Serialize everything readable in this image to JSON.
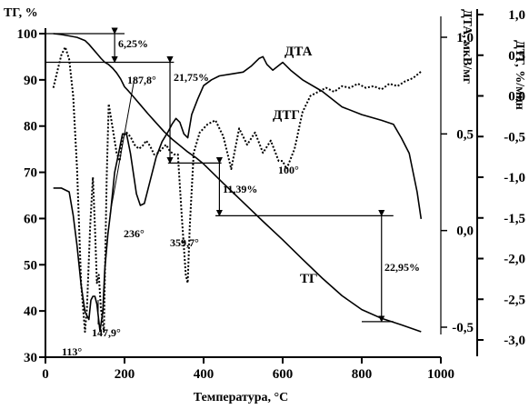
{
  "chart_data": {
    "type": "line",
    "title": "",
    "xlabel": "Температура, °С",
    "ylabels": {
      "tg": "ТГ, %",
      "dta": "ДТА, мкВ/мг",
      "dtg": "ДТГ, %/мин"
    },
    "xlim": [
      0,
      1000
    ],
    "ylims": {
      "tg": [
        30,
        100
      ],
      "dta": [
        -0.5,
        1.0
      ],
      "dtg": [
        -3.0,
        1.0
      ]
    },
    "grid": false,
    "legend": "none",
    "axes": {
      "x_ticks": [
        "0",
        "200",
        "400",
        "600",
        "800",
        "1000"
      ],
      "tg_ticks": [
        "30",
        "40",
        "50",
        "60",
        "70",
        "80",
        "90",
        "100"
      ],
      "dta_ticks": [
        "-0,5",
        "0,0",
        "0,5",
        "1,0"
      ],
      "dtg_ticks": [
        "-3,0",
        "-2,5",
        "-2,0",
        "-1,5",
        "-1,0",
        "-0,5",
        "0,0",
        "0,5",
        "1,0"
      ]
    },
    "curve_labels": {
      "tg": "ТГ",
      "dta": "ДТА",
      "dtg": "ДТГ"
    },
    "series": [
      {
        "name": "ТГ",
        "axis": "tg",
        "style": "solid",
        "x": [
          20,
          40,
          60,
          80,
          100,
          110,
          120,
          130,
          140,
          150,
          160,
          170,
          180,
          190,
          200,
          210,
          220,
          240,
          260,
          280,
          300,
          320,
          340,
          360,
          380,
          400,
          450,
          500,
          550,
          600,
          650,
          700,
          750,
          800,
          850,
          900,
          950
        ],
        "y": [
          100,
          99.8,
          99.5,
          99.2,
          98.5,
          97.7,
          96.7,
          95.7,
          94.7,
          93.8,
          93.3,
          92.5,
          91.5,
          90.2,
          88.5,
          87.6,
          86.6,
          84.6,
          82.6,
          80.7,
          78.8,
          77.2,
          75.8,
          74.4,
          73.2,
          71.8,
          67.6,
          63.5,
          59.4,
          55.4,
          51.2,
          47.1,
          43.3,
          40.3,
          38.4,
          37,
          35.5
        ]
      },
      {
        "name": "ДТА",
        "axis": "dta",
        "style": "solid",
        "x": [
          20,
          40,
          60,
          70,
          80,
          90,
          100,
          110,
          115,
          120,
          125,
          130,
          138,
          145,
          150,
          158,
          165,
          175,
          185,
          195,
          205,
          215,
          230,
          240,
          250,
          265,
          280,
          295,
          310,
          320,
          330,
          340,
          350,
          360,
          370,
          385,
          400,
          420,
          440,
          470,
          500,
          520,
          540,
          550,
          560,
          575,
          600,
          620,
          650,
          700,
          750,
          800,
          850,
          880,
          900,
          920,
          940,
          950
        ],
        "y": [
          0.22,
          0.22,
          0.2,
          0.08,
          -0.08,
          -0.28,
          -0.42,
          -0.46,
          -0.36,
          -0.34,
          -0.34,
          -0.38,
          -0.52,
          -0.42,
          -0.2,
          -0.02,
          0.1,
          0.3,
          0.4,
          0.5,
          0.5,
          0.4,
          0.19,
          0.13,
          0.14,
          0.26,
          0.38,
          0.46,
          0.51,
          0.55,
          0.58,
          0.56,
          0.5,
          0.48,
          0.6,
          0.68,
          0.75,
          0.78,
          0.8,
          0.81,
          0.82,
          0.85,
          0.89,
          0.9,
          0.86,
          0.83,
          0.87,
          0.83,
          0.78,
          0.72,
          0.64,
          0.6,
          0.57,
          0.55,
          0.48,
          0.4,
          0.2,
          0.06
        ]
      },
      {
        "name": "ДТГ",
        "axis": "dtg",
        "style": "dotted",
        "x": [
          20,
          30,
          40,
          50,
          60,
          70,
          80,
          90,
          100,
          105,
          113,
          120,
          125,
          130,
          135,
          140,
          147.9,
          155,
          160,
          170,
          180,
          187.8,
          195,
          205,
          215,
          225,
          236,
          245,
          255,
          265,
          275,
          285,
          295,
          305,
          315,
          325,
          335,
          345,
          355,
          359.7,
          365,
          375,
          390,
          410,
          430,
          450,
          470,
          490,
          510,
          530,
          550,
          570,
          590,
          600,
          610,
          630,
          650,
          670,
          690,
          710,
          730,
          750,
          770,
          790,
          810,
          830,
          850,
          870,
          890,
          910,
          930,
          950
        ],
        "y": [
          0.1,
          0.3,
          0.5,
          0.6,
          0.45,
          0.0,
          -0.9,
          -2.3,
          -2.9,
          -2.6,
          -1.6,
          -1.0,
          -1.6,
          -2.3,
          -2.2,
          -2.6,
          -2.9,
          -1.0,
          -0.1,
          -0.4,
          -0.7,
          -0.8,
          -0.5,
          -0.45,
          -0.5,
          -0.6,
          -0.65,
          -0.62,
          -0.55,
          -0.62,
          -0.72,
          -0.7,
          -0.65,
          -0.6,
          -0.68,
          -0.72,
          -0.72,
          -1.5,
          -2.2,
          -2.3,
          -1.6,
          -0.7,
          -0.45,
          -0.35,
          -0.3,
          -0.5,
          -0.9,
          -0.4,
          -0.6,
          -0.45,
          -0.7,
          -0.55,
          -0.8,
          -0.8,
          -0.9,
          -0.65,
          -0.2,
          0.0,
          0.05,
          0.1,
          0.05,
          0.12,
          0.1,
          0.15,
          0.1,
          0.12,
          0.08,
          0.15,
          0.12,
          0.18,
          0.22,
          0.3
        ]
      }
    ],
    "annotations": {
      "peaks": [
        "113°",
        "147,9°",
        "187,8°",
        "236°",
        "359,7°",
        "100°"
      ],
      "mass_losses": [
        "6,25%",
        "21,75%",
        "11,39%",
        "22,95%"
      ]
    }
  }
}
